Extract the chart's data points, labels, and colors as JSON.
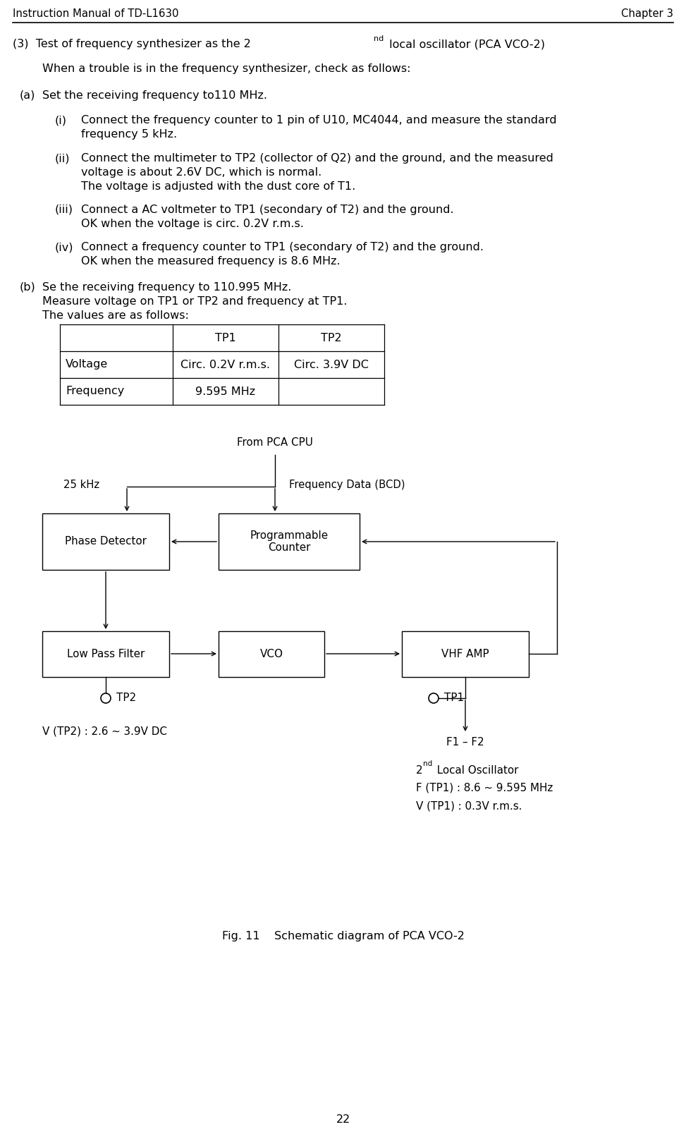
{
  "header_left": "Instruction Manual of TD-L1630",
  "header_right": "Chapter 3",
  "page_number": "22",
  "bg_color": "#ffffff",
  "text_color": "#000000",
  "font_size": 11.5,
  "font_family": "DejaVu Sans",
  "diagram": {
    "from_pca_cpu": "From PCA CPU",
    "freq_25khz": "25 kHz",
    "freq_data": "Frequency Data (BCD)",
    "box_phase": "Phase Detector",
    "box_prog": "Programmable\nCounter",
    "box_lpf": "Low Pass Filter",
    "box_vco": "VCO",
    "box_vhf": "VHF AMP",
    "tp2_label": "TP2",
    "tp1_label": "TP1",
    "f1f2_label": "F1 – F2",
    "local_osc_2": "2",
    "local_osc_nd": "nd",
    "local_osc_rest": " Local Oscillator",
    "f_tp1": "F (TP1) : 8.6 ~ 9.595 MHz",
    "v_tp1": "V (TP1) : 0.3V r.m.s.",
    "vtp2_label": "V (TP2) : 2.6 ~ 3.9V DC"
  },
  "fig_caption": "Fig. 11    Schematic diagram of PCA VCO-2"
}
